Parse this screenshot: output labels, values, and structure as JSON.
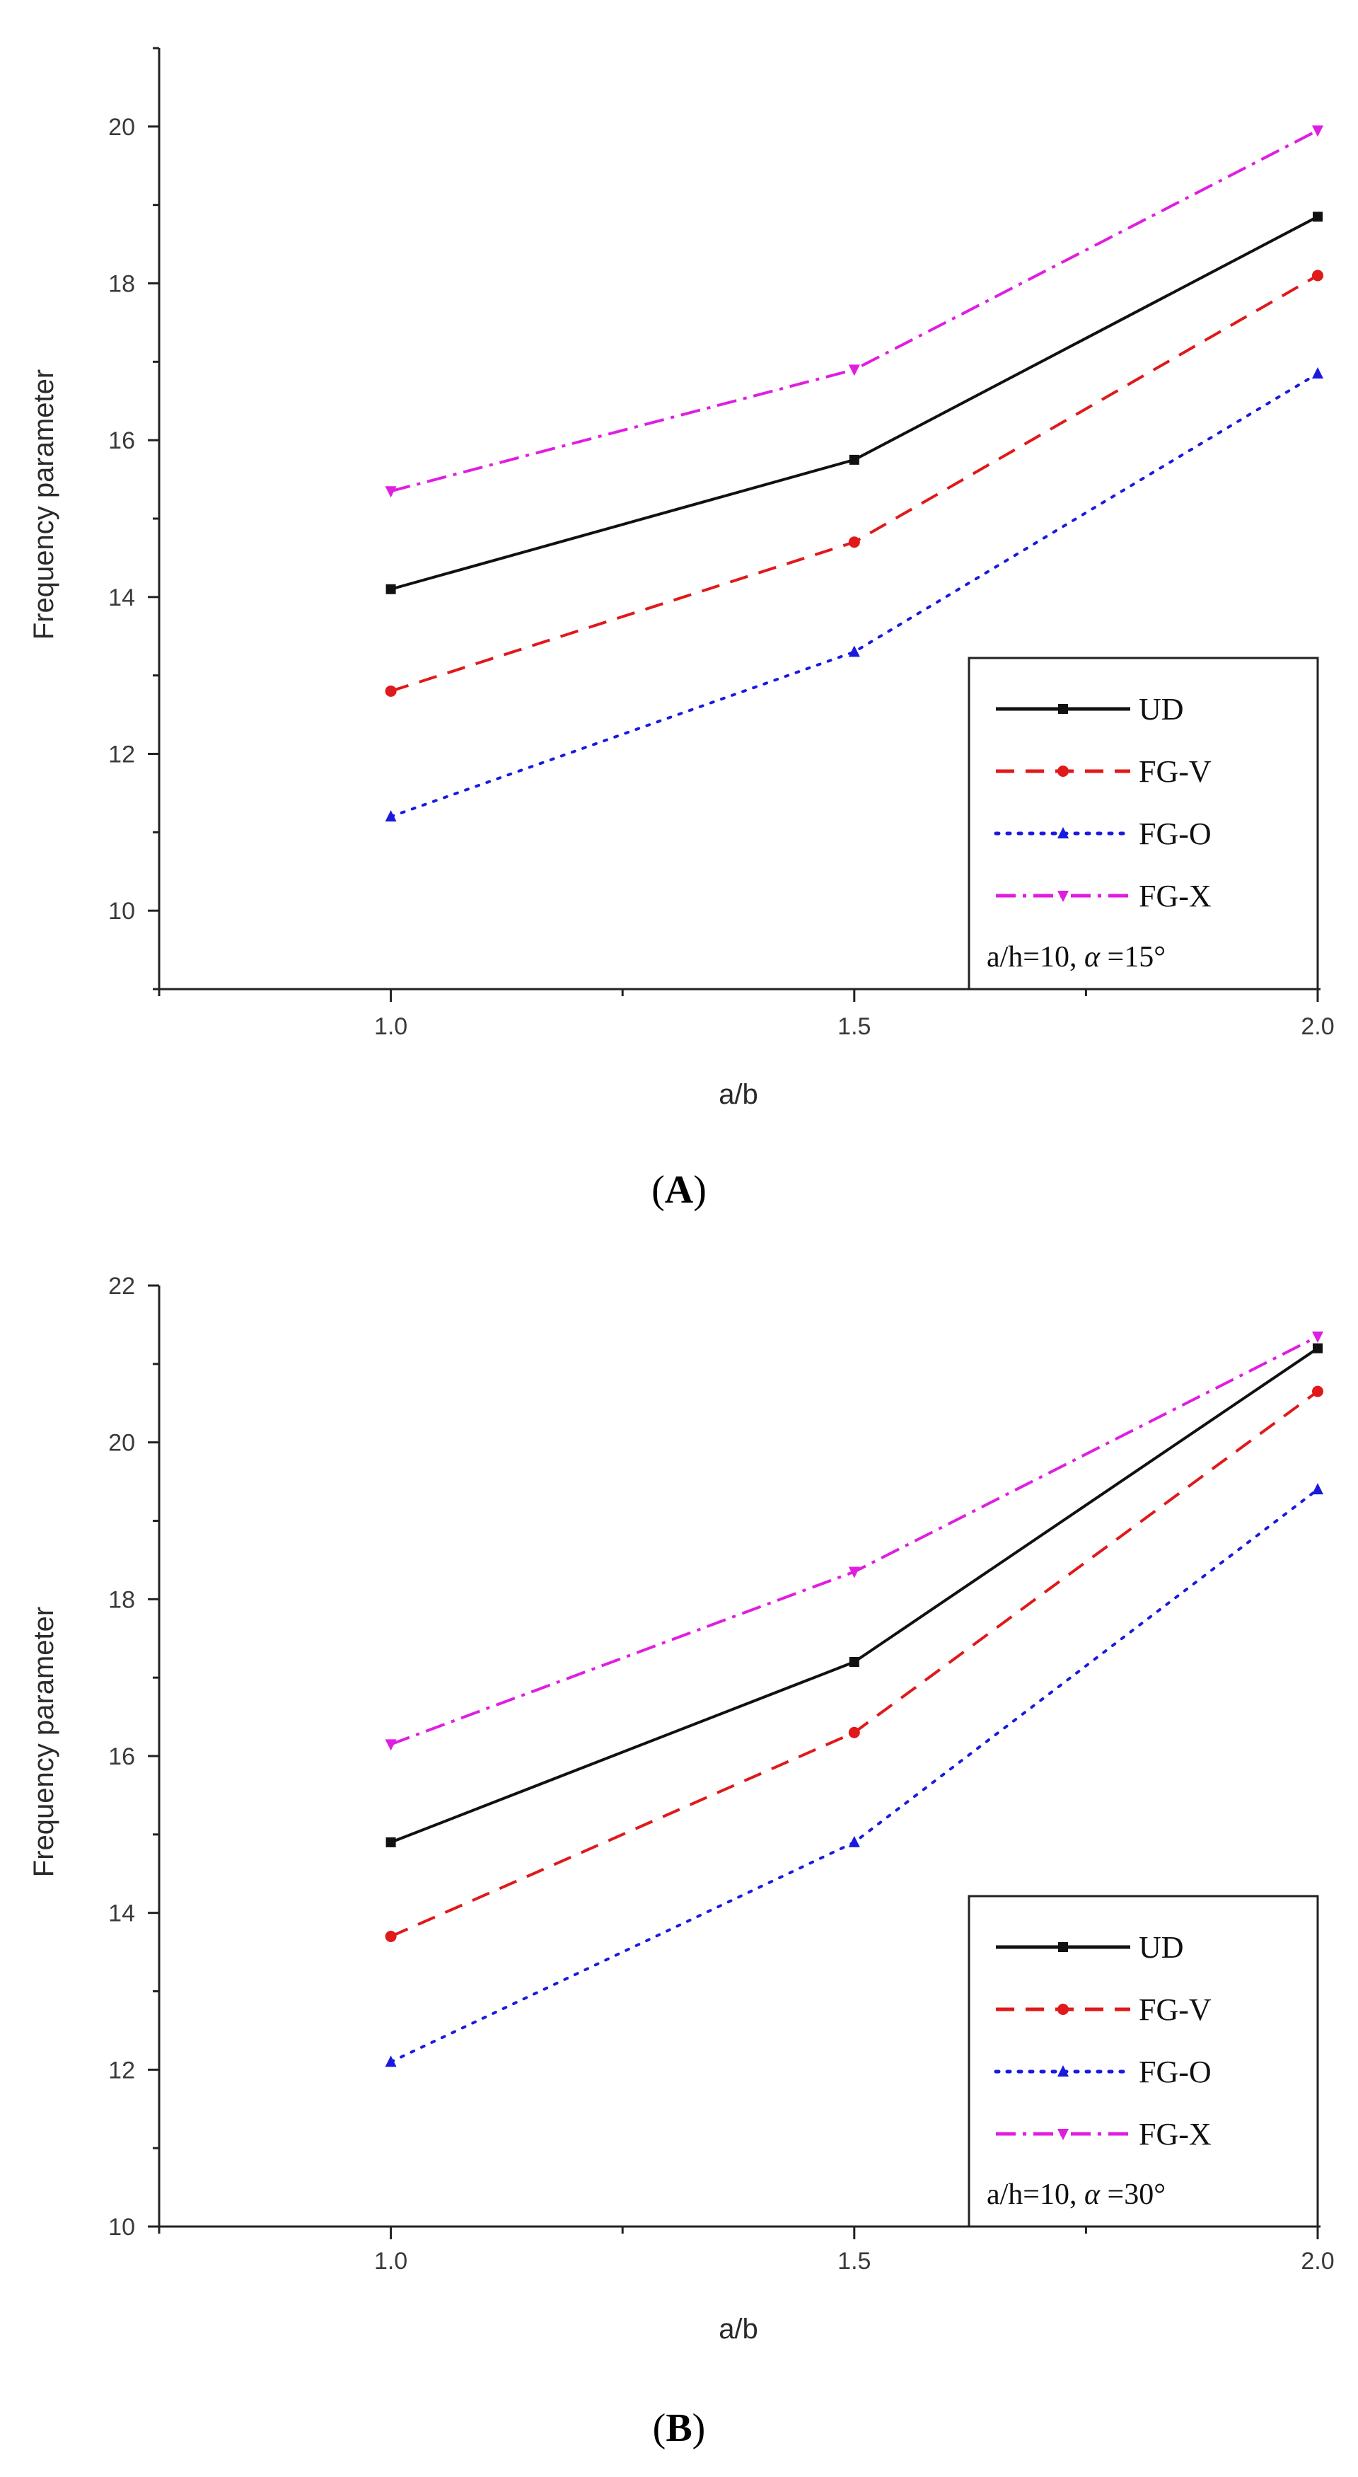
{
  "chart_data": [
    {
      "type": "line",
      "panel_label": "A",
      "title": "",
      "xlabel": "a/b",
      "ylabel": "Frequency parameter",
      "x": [
        1.0,
        1.5,
        2.0
      ],
      "xticks": [
        "1.0",
        "1.5",
        "2.0"
      ],
      "xlim": [
        0.75,
        2.0
      ],
      "ylim": [
        9,
        21
      ],
      "yticks": [
        10,
        12,
        14,
        16,
        18,
        20
      ],
      "ytick_labels": [
        "10",
        "12",
        "14",
        "16",
        "18",
        "20"
      ],
      "grid": false,
      "legend_position": "bottom-right",
      "annotation_prefix": "a/h=10, ",
      "annotation_symbol": "α",
      "annotation_suffix": " =15°",
      "series": [
        {
          "name": "UD",
          "values": [
            14.1,
            15.75,
            18.85
          ],
          "color": "#111111",
          "dash": "solid",
          "marker": "square"
        },
        {
          "name": "FG-V",
          "values": [
            12.8,
            14.7,
            18.1
          ],
          "color": "#e0191b",
          "dash": "dash",
          "marker": "circle"
        },
        {
          "name": "FG-O",
          "values": [
            11.2,
            13.3,
            16.85
          ],
          "color": "#1a1adf",
          "dash": "dot",
          "marker": "triangle-up"
        },
        {
          "name": "FG-X",
          "values": [
            15.35,
            16.9,
            19.95
          ],
          "color": "#e01ee0",
          "dash": "dashdot",
          "marker": "triangle-down"
        }
      ]
    },
    {
      "type": "line",
      "panel_label": "B",
      "title": "",
      "xlabel": "a/b",
      "ylabel": "Frequency parameter",
      "x": [
        1.0,
        1.5,
        2.0
      ],
      "xticks": [
        "1.0",
        "1.5",
        "2.0"
      ],
      "xlim": [
        0.75,
        2.0
      ],
      "ylim": [
        10,
        22
      ],
      "yticks": [
        10,
        12,
        14,
        16,
        18,
        20,
        22
      ],
      "ytick_labels": [
        "10",
        "12",
        "14",
        "16",
        "18",
        "20",
        "22"
      ],
      "grid": false,
      "legend_position": "bottom-right",
      "annotation_prefix": "a/h=10, ",
      "annotation_symbol": "α",
      "annotation_suffix": " =30°",
      "series": [
        {
          "name": "UD",
          "values": [
            14.9,
            17.2,
            21.2
          ],
          "color": "#111111",
          "dash": "solid",
          "marker": "square"
        },
        {
          "name": "FG-V",
          "values": [
            13.7,
            16.3,
            20.65
          ],
          "color": "#e0191b",
          "dash": "dash",
          "marker": "circle"
        },
        {
          "name": "FG-O",
          "values": [
            12.1,
            14.9,
            19.4
          ],
          "color": "#1a1adf",
          "dash": "dot",
          "marker": "triangle-up"
        },
        {
          "name": "FG-X",
          "values": [
            16.15,
            18.35,
            21.35
          ],
          "color": "#e01ee0",
          "dash": "dashdot",
          "marker": "triangle-down"
        }
      ]
    }
  ]
}
